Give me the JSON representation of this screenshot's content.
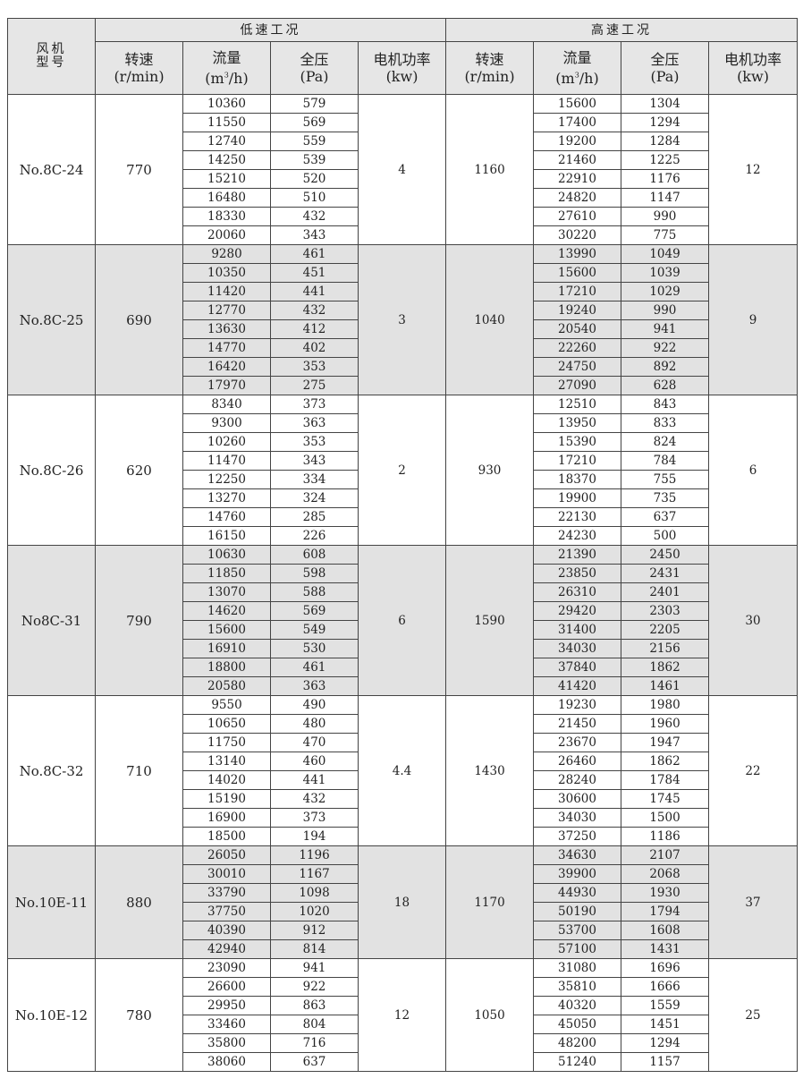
{
  "header": {
    "model": "风机\n型号",
    "low_group": "低速工况",
    "high_group": "高速工况",
    "columns": [
      {
        "label": "转速",
        "unit": "(r/min)"
      },
      {
        "label": "流量",
        "unit": "(m3/h)"
      },
      {
        "label": "全压",
        "unit": "(Pa)"
      },
      {
        "label": "电机功率",
        "unit": "(kw)"
      },
      {
        "label": "转速",
        "unit": "(r/min)"
      },
      {
        "label": "流量",
        "unit": "(m3/h)"
      },
      {
        "label": "全压",
        "unit": "(Pa)"
      },
      {
        "label": "电机功率",
        "unit": "(kw)"
      }
    ]
  },
  "shade_color": "#e2e2e2",
  "models": [
    {
      "name": "No.8C-24",
      "low_rpm": "770",
      "low_power": "4",
      "high_rpm": "1160",
      "high_power": "12",
      "low_flow": [
        "10360",
        "11550",
        "12740",
        "14250",
        "15210",
        "16480",
        "18330",
        "20060"
      ],
      "low_pressure": [
        "579",
        "569",
        "559",
        "539",
        "520",
        "510",
        "432",
        "343"
      ],
      "high_flow": [
        "15600",
        "17400",
        "19200",
        "21460",
        "22910",
        "24820",
        "27610",
        "30220"
      ],
      "high_pressure": [
        "1304",
        "1294",
        "1284",
        "1225",
        "1176",
        "1147",
        "990",
        "775"
      ]
    },
    {
      "name": "No.8C-25",
      "low_rpm": "690",
      "low_power": "3",
      "high_rpm": "1040",
      "high_power": "9",
      "low_flow": [
        "9280",
        "10350",
        "11420",
        "12770",
        "13630",
        "14770",
        "16420",
        "17970"
      ],
      "low_pressure": [
        "461",
        "451",
        "441",
        "432",
        "412",
        "402",
        "353",
        "275"
      ],
      "high_flow": [
        "13990",
        "15600",
        "17210",
        "19240",
        "20540",
        "22260",
        "24750",
        "27090"
      ],
      "high_pressure": [
        "1049",
        "1039",
        "1029",
        "990",
        "941",
        "922",
        "892",
        "628"
      ]
    },
    {
      "name": "No.8C-26",
      "low_rpm": "620",
      "low_power": "2",
      "high_rpm": "930",
      "high_power": "6",
      "low_flow": [
        "8340",
        "9300",
        "10260",
        "11470",
        "12250",
        "13270",
        "14760",
        "16150"
      ],
      "low_pressure": [
        "373",
        "363",
        "353",
        "343",
        "334",
        "324",
        "285",
        "226"
      ],
      "high_flow": [
        "12510",
        "13950",
        "15390",
        "17210",
        "18370",
        "19900",
        "22130",
        "24230"
      ],
      "high_pressure": [
        "843",
        "833",
        "824",
        "784",
        "755",
        "735",
        "637",
        "500"
      ]
    },
    {
      "name": "No8C-31",
      "low_rpm": "790",
      "low_power": "6",
      "high_rpm": "1590",
      "high_power": "30",
      "low_flow": [
        "10630",
        "11850",
        "13070",
        "14620",
        "15600",
        "16910",
        "18800",
        "20580"
      ],
      "low_pressure": [
        "608",
        "598",
        "588",
        "569",
        "549",
        "530",
        "461",
        "363"
      ],
      "high_flow": [
        "21390",
        "23850",
        "26310",
        "29420",
        "31400",
        "34030",
        "37840",
        "41420"
      ],
      "high_pressure": [
        "2450",
        "2431",
        "2401",
        "2303",
        "2205",
        "2156",
        "1862",
        "1461"
      ]
    },
    {
      "name": "No.8C-32",
      "low_rpm": "710",
      "low_power": "4.4",
      "high_rpm": "1430",
      "high_power": "22",
      "low_flow": [
        "9550",
        "10650",
        "11750",
        "13140",
        "14020",
        "15190",
        "16900",
        "18500"
      ],
      "low_pressure": [
        "490",
        "480",
        "470",
        "460",
        "441",
        "432",
        "373",
        "194"
      ],
      "high_flow": [
        "19230",
        "21450",
        "23670",
        "26460",
        "28240",
        "30600",
        "34030",
        "37250"
      ],
      "high_pressure": [
        "1980",
        "1960",
        "1947",
        "1862",
        "1784",
        "1745",
        "1500",
        "1186"
      ]
    },
    {
      "name": "No.10E-11",
      "low_rpm": "880",
      "low_power": "18",
      "high_rpm": "1170",
      "high_power": "37",
      "low_flow": [
        "26050",
        "30010",
        "33790",
        "37750",
        "40390",
        "42940"
      ],
      "low_pressure": [
        "1196",
        "1167",
        "1098",
        "1020",
        "912",
        "814"
      ],
      "high_flow": [
        "34630",
        "39900",
        "44930",
        "50190",
        "53700",
        "57100"
      ],
      "high_pressure": [
        "2107",
        "2068",
        "1930",
        "1794",
        "1608",
        "1431"
      ]
    },
    {
      "name": "No.10E-12",
      "low_rpm": "780",
      "low_power": "12",
      "high_rpm": "1050",
      "high_power": "25",
      "low_flow": [
        "23090",
        "26600",
        "29950",
        "33460",
        "35800",
        "38060"
      ],
      "low_pressure": [
        "941",
        "922",
        "863",
        "804",
        "716",
        "637"
      ],
      "high_flow": [
        "31080",
        "35810",
        "40320",
        "45050",
        "48200",
        "51240"
      ],
      "high_pressure": [
        "1696",
        "1666",
        "1559",
        "1451",
        "1294",
        "1157"
      ]
    }
  ]
}
